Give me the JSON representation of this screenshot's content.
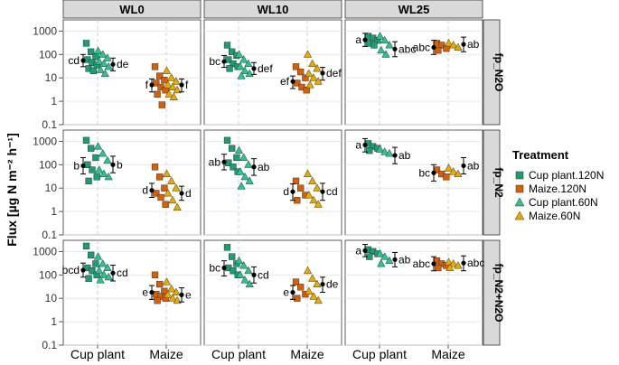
{
  "chart_data": {
    "type": "scatter",
    "y_label": "Flux [µg N m⁻² h⁻¹]",
    "y_scale": "log10",
    "y_ticks": [
      0.1,
      1,
      10,
      100,
      1000
    ],
    "y_tick_labels": [
      "0.1",
      "1",
      "10",
      "100",
      "1000"
    ],
    "columns": [
      "WL0",
      "WL10",
      "WL25"
    ],
    "rows": [
      "fp_N2O",
      "fp_N2",
      "fp_N2+N2O"
    ],
    "categories": [
      "Cup plant",
      "Maize"
    ],
    "legend": {
      "title": "Treatment",
      "position": "right",
      "entries": [
        {
          "label": "Cup plant.120N",
          "shape": "square",
          "color": "#1b9e77"
        },
        {
          "label": "Maize.120N",
          "shape": "square",
          "color": "#d95f02"
        },
        {
          "label": "Cup plant.60N",
          "shape": "triangle",
          "color": "#2ec28e"
        },
        {
          "label": "Maize.60N",
          "shape": "triangle",
          "color": "#e6ab02"
        }
      ]
    },
    "panels": [
      {
        "col": "WL0",
        "row": "fp_N2O",
        "groups": [
          {
            "crop": "Cup plant",
            "n": "120N",
            "mean": 55,
            "lo": 30,
            "hi": 100,
            "letter": "cd",
            "points": [
              300,
              130,
              80,
              60,
              45,
              35,
              25,
              20
            ]
          },
          {
            "crop": "Cup plant",
            "n": "60N",
            "mean": 38,
            "lo": 20,
            "hi": 70,
            "letter": "de",
            "points": [
              140,
              100,
              70,
              50,
              40,
              30,
              22,
              15
            ]
          },
          {
            "crop": "Maize",
            "n": "120N",
            "mean": 5,
            "lo": 2.5,
            "hi": 9,
            "letter": "f",
            "points": [
              30,
              12,
              8,
              6,
              4,
              3,
              2,
              0.7
            ]
          },
          {
            "crop": "Maize",
            "n": "60N",
            "mean": 5,
            "lo": 2.5,
            "hi": 9,
            "letter": "f",
            "points": [
              20,
              10,
              7,
              5,
              4,
              3,
              2,
              1.5
            ]
          }
        ]
      },
      {
        "col": "WL10",
        "row": "fp_N2O",
        "groups": [
          {
            "crop": "Cup plant",
            "n": "120N",
            "mean": 50,
            "lo": 28,
            "hi": 90,
            "letter": "bc",
            "points": [
              250,
              130,
              90,
              60,
              40,
              30,
              25
            ]
          },
          {
            "crop": "Cup plant",
            "n": "60N",
            "mean": 25,
            "lo": 14,
            "hi": 45,
            "letter": "def",
            "points": [
              100,
              60,
              40,
              30,
              20,
              15,
              12
            ]
          },
          {
            "crop": "Maize",
            "n": "120N",
            "mean": 7,
            "lo": 3.5,
            "hi": 12,
            "letter": "ef",
            "points": [
              30,
              18,
              10,
              6,
              4,
              3
            ]
          },
          {
            "crop": "Maize",
            "n": "60N",
            "mean": 16,
            "lo": 8,
            "hi": 28,
            "letter": "def",
            "points": [
              100,
              40,
              25,
              15,
              10,
              7,
              5
            ]
          }
        ]
      },
      {
        "col": "WL25",
        "row": "fp_N2O",
        "groups": [
          {
            "crop": "Cup plant",
            "n": "120N",
            "mean": 420,
            "lo": 220,
            "hi": 800,
            "letter": "a",
            "points": [
              600,
              500,
              400,
              300,
              250
            ]
          },
          {
            "crop": "Cup plant",
            "n": "60N",
            "mean": 170,
            "lo": 80,
            "hi": 350,
            "letter": "abc",
            "points": [
              600,
              400,
              250,
              150,
              100
            ]
          },
          {
            "crop": "Maize",
            "n": "120N",
            "mean": 200,
            "lo": 100,
            "hi": 400,
            "letter": "abc",
            "points": [
              300,
              250,
              180,
              150
            ]
          },
          {
            "crop": "Maize",
            "n": "60N",
            "mean": 270,
            "lo": 130,
            "hi": 550,
            "letter": "ab",
            "points": [
              300,
              250,
              200
            ]
          }
        ]
      },
      {
        "col": "WL0",
        "row": "fp_N2",
        "groups": [
          {
            "crop": "Cup plant",
            "n": "120N",
            "mean": 90,
            "lo": 40,
            "hi": 200,
            "letter": "b",
            "points": [
              1100,
              500,
              200,
              100,
              60,
              30,
              20
            ]
          },
          {
            "crop": "Cup plant",
            "n": "60N",
            "mean": 100,
            "lo": 45,
            "hi": 230,
            "letter": "b",
            "points": [
              600,
              300,
              150,
              60,
              40,
              30
            ]
          },
          {
            "crop": "Maize",
            "n": "120N",
            "mean": 8,
            "lo": 4,
            "hi": 16,
            "letter": "d",
            "points": [
              80,
              30,
              10,
              6,
              4,
              2
            ]
          },
          {
            "crop": "Maize",
            "n": "60N",
            "mean": 6,
            "lo": 3,
            "hi": 12,
            "letter": "d",
            "points": [
              40,
              20,
              10,
              6,
              3,
              1.5
            ]
          }
        ]
      },
      {
        "col": "WL10",
        "row": "fp_N2",
        "groups": [
          {
            "crop": "Cup plant",
            "n": "120N",
            "mean": 130,
            "lo": 60,
            "hi": 280,
            "letter": "ab",
            "points": [
              1100,
              500,
              200,
              120,
              80,
              50
            ]
          },
          {
            "crop": "Cup plant",
            "n": "60N",
            "mean": 80,
            "lo": 35,
            "hi": 180,
            "letter": "ab",
            "points": [
              400,
              200,
              100,
              50,
              30,
              20,
              12
            ]
          },
          {
            "crop": "Maize",
            "n": "120N",
            "mean": 7,
            "lo": 3,
            "hi": 15,
            "letter": "d",
            "points": [
              20,
              10,
              5,
              3
            ]
          },
          {
            "crop": "Maize",
            "n": "60N",
            "mean": 7,
            "lo": 3,
            "hi": 16,
            "letter": "cd",
            "points": [
              40,
              20,
              10,
              5,
              3,
              2
            ]
          }
        ]
      },
      {
        "col": "WL25",
        "row": "fp_N2",
        "groups": [
          {
            "crop": "Cup plant",
            "n": "120N",
            "mean": 700,
            "lo": 350,
            "hi": 1300,
            "letter": "a",
            "points": [
              800,
              600,
              500,
              400
            ]
          },
          {
            "crop": "Cup plant",
            "n": "60N",
            "mean": 250,
            "lo": 110,
            "hi": 550,
            "letter": "ab",
            "points": [
              450,
              350,
              300
            ]
          },
          {
            "crop": "Maize",
            "n": "120N",
            "mean": 45,
            "lo": 20,
            "hi": 100,
            "letter": "bc",
            "points": [
              60,
              40,
              30
            ]
          },
          {
            "crop": "Maize",
            "n": "60N",
            "mean": 90,
            "lo": 40,
            "hi": 200,
            "letter": "ab",
            "points": [
              70,
              50,
              40
            ]
          }
        ]
      },
      {
        "col": "WL0",
        "row": "fp_N2+N2O",
        "groups": [
          {
            "crop": "Cup plant",
            "n": "120N",
            "mean": 160,
            "lo": 80,
            "hi": 320,
            "letter": "bcd",
            "points": [
              1700,
              700,
              300,
              200,
              150,
              100,
              70
            ]
          },
          {
            "crop": "Cup plant",
            "n": "60N",
            "mean": 120,
            "lo": 55,
            "hi": 260,
            "letter": "cd",
            "points": [
              600,
              300,
              200,
              150,
              100,
              80,
              60
            ]
          },
          {
            "crop": "Maize",
            "n": "120N",
            "mean": 18,
            "lo": 9,
            "hi": 35,
            "letter": "e",
            "points": [
              100,
              40,
              20,
              15,
              12,
              10,
              8
            ]
          },
          {
            "crop": "Maize",
            "n": "60N",
            "mean": 14,
            "lo": 7,
            "hi": 28,
            "letter": "e",
            "points": [
              50,
              25,
              18,
              14,
              10,
              8
            ]
          }
        ]
      },
      {
        "col": "WL10",
        "row": "fp_N2+N2O",
        "groups": [
          {
            "crop": "Cup plant",
            "n": "120N",
            "mean": 200,
            "lo": 90,
            "hi": 400,
            "letter": "bc",
            "points": [
              1500,
              600,
              300,
              200,
              150,
              100
            ]
          },
          {
            "crop": "Cup plant",
            "n": "60N",
            "mean": 100,
            "lo": 45,
            "hi": 220,
            "letter": "cd",
            "points": [
              400,
              250,
              150,
              100,
              60,
              40
            ]
          },
          {
            "crop": "Maize",
            "n": "120N",
            "mean": 18,
            "lo": 9,
            "hi": 35,
            "letter": "e",
            "points": [
              50,
              30,
              15,
              10
            ]
          },
          {
            "crop": "Maize",
            "n": "60N",
            "mean": 40,
            "lo": 18,
            "hi": 80,
            "letter": "de",
            "points": [
              150,
              70,
              40,
              20,
              12,
              8
            ]
          }
        ]
      },
      {
        "col": "WL25",
        "row": "fp_N2+N2O",
        "groups": [
          {
            "crop": "Cup plant",
            "n": "120N",
            "mean": 1100,
            "lo": 600,
            "hi": 2000,
            "letter": "a",
            "points": [
              1200,
              1000,
              800,
              600
            ]
          },
          {
            "crop": "Cup plant",
            "n": "60N",
            "mean": 450,
            "lo": 220,
            "hi": 900,
            "letter": "ab",
            "points": [
              800,
              600,
              400,
              300
            ]
          },
          {
            "crop": "Maize",
            "n": "120N",
            "mean": 300,
            "lo": 150,
            "hi": 600,
            "letter": "abc",
            "points": [
              400,
              300,
              250,
              200
            ]
          },
          {
            "crop": "Maize",
            "n": "60N",
            "mean": 320,
            "lo": 150,
            "hi": 650,
            "letter": "abc",
            "points": [
              350,
              300,
              250,
              200
            ]
          }
        ]
      }
    ]
  }
}
